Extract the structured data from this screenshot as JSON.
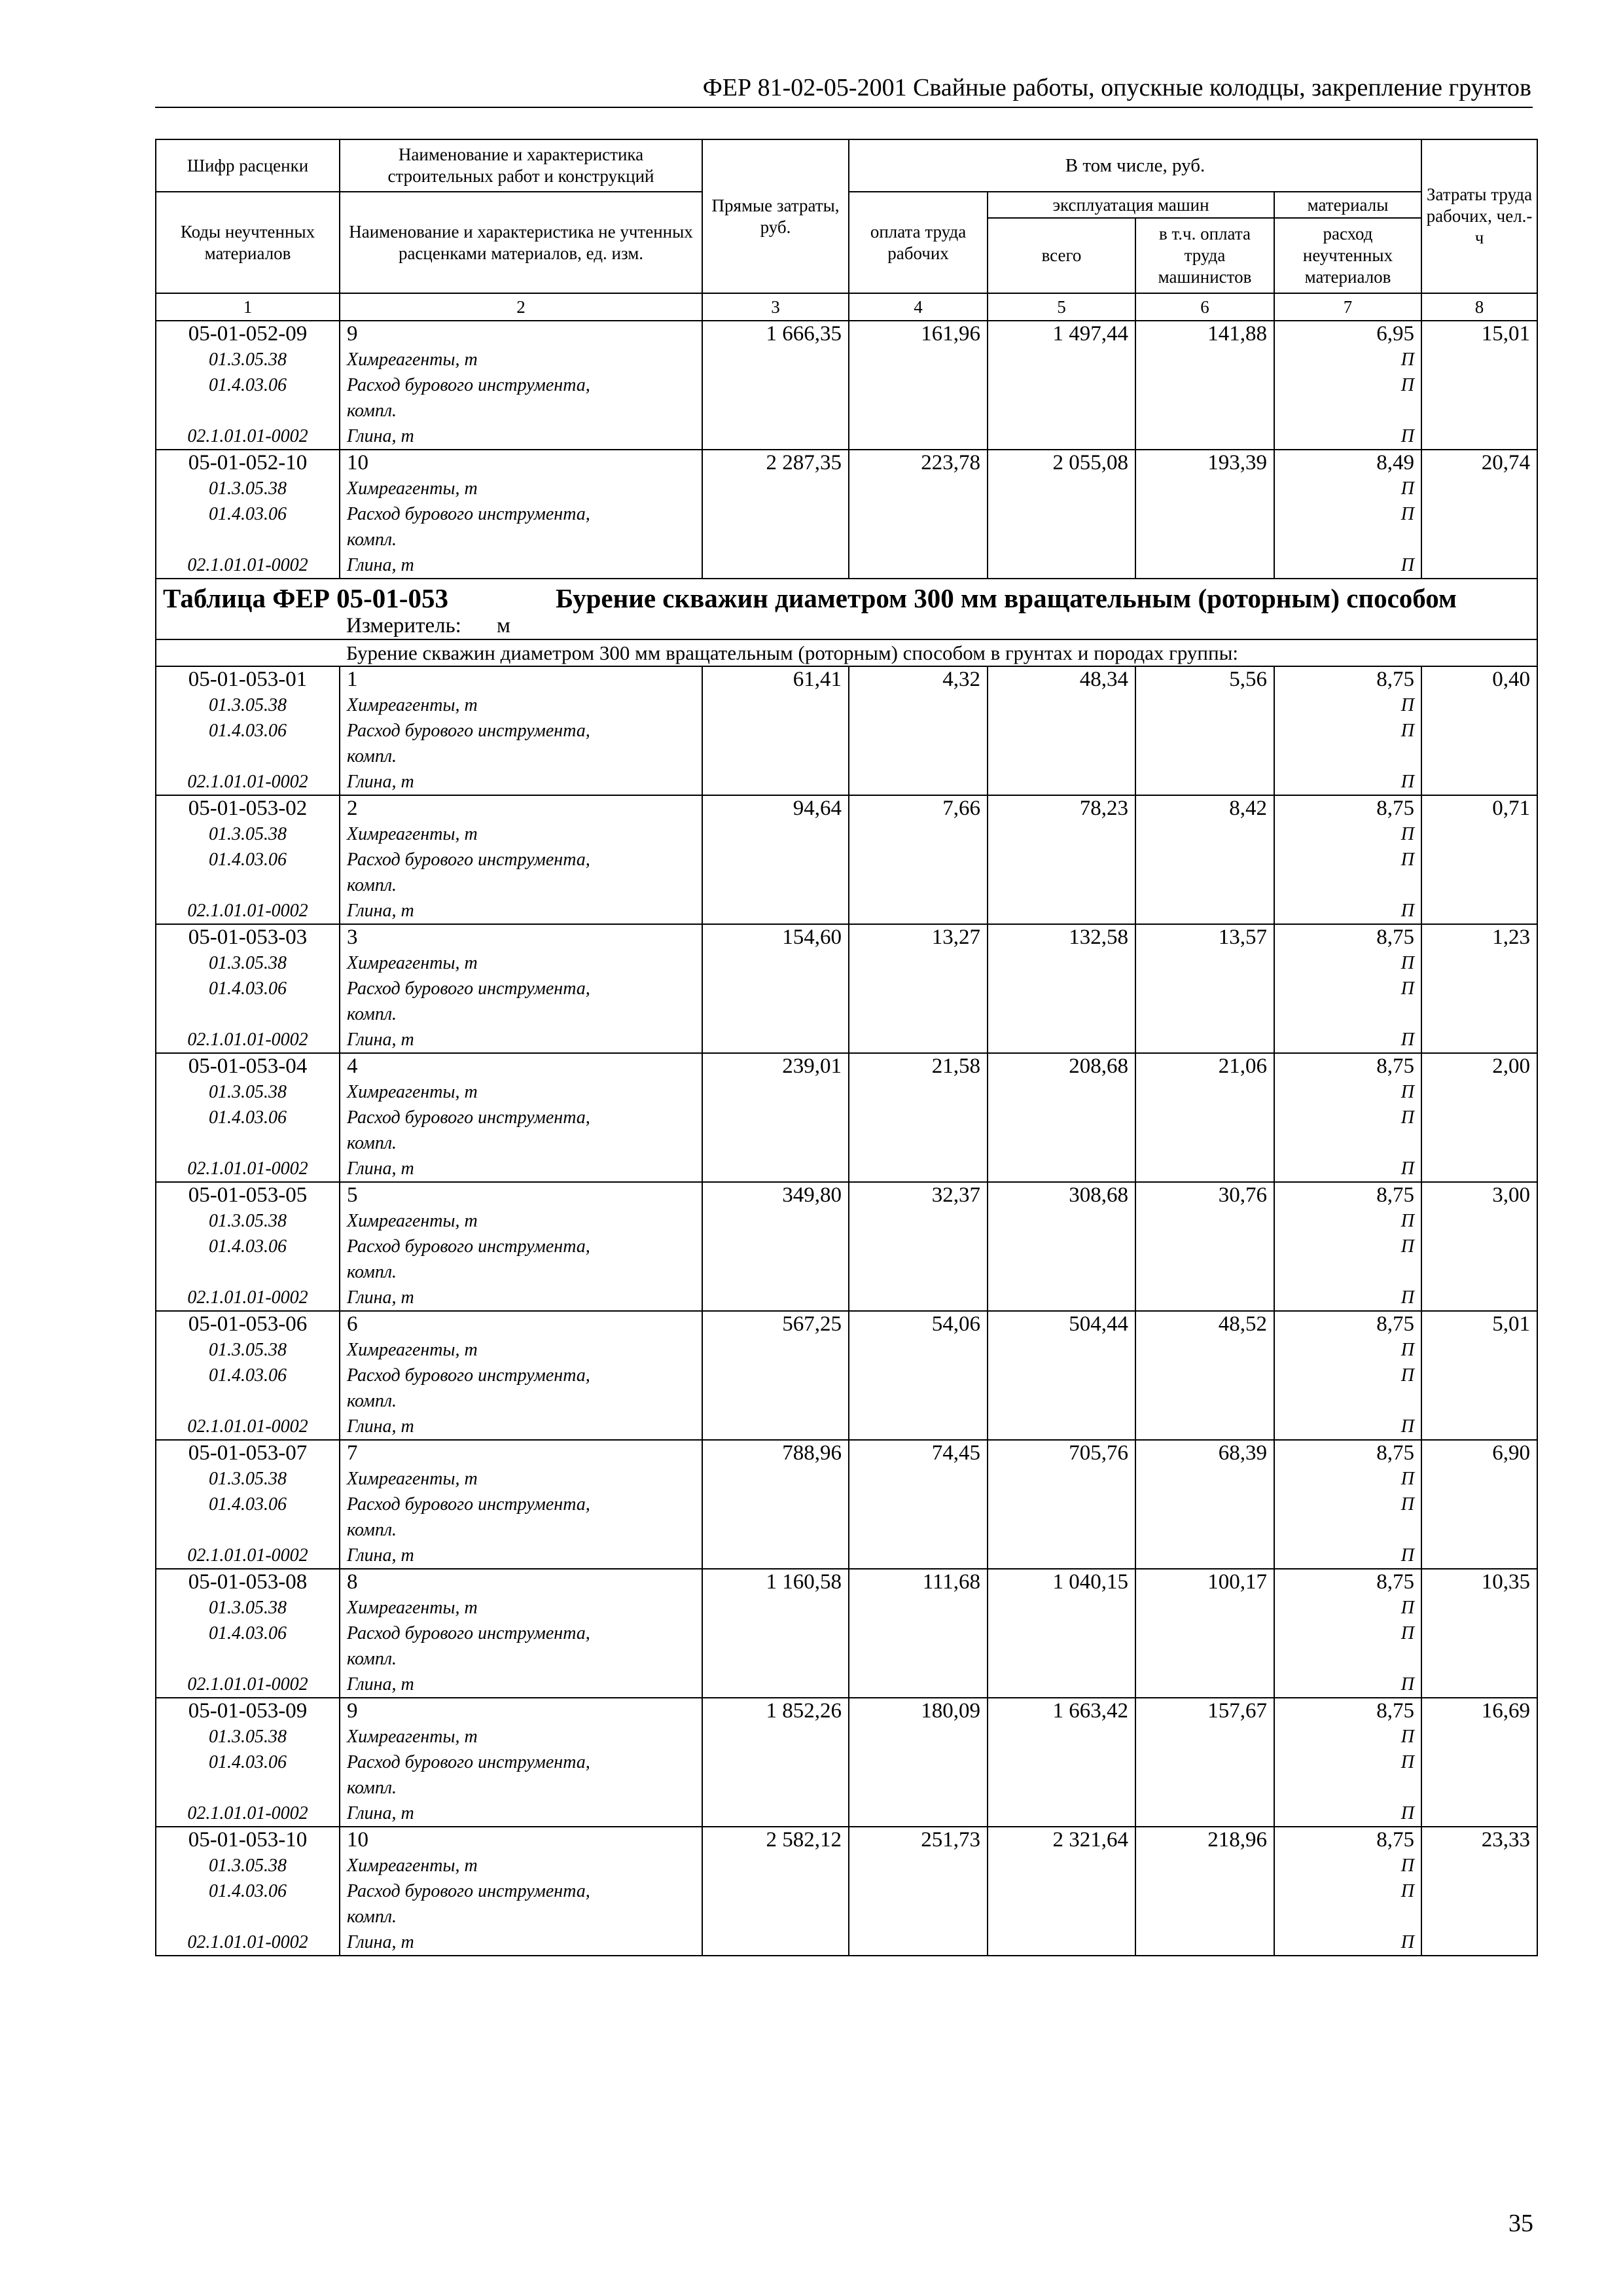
{
  "header": {
    "title": "ФЕР 81-02-05-2001 Свайные работы, опускные колодцы, закрепление грунтов"
  },
  "table": {
    "head": {
      "code": "Шифр расценки",
      "name": "Наименование и характеристика строительных работ и конструкций",
      "direct": "Прямые затраты, руб.",
      "incl": "В том числе, руб.",
      "labor_pay": "оплата труда рабочих",
      "machines": "эксплуатация машин",
      "machines_total": "всего",
      "machinists": "в т.ч. оплата труда машинистов",
      "materials": "материалы",
      "materials_sub": "расход неучтенных материалов",
      "labor": "Затраты труда рабочих, чел.-ч",
      "mat_codes": "Коды неучтенных материалов",
      "mat_names": "Наименование и характеристика не учтенных расценками материалов, ед. изм.",
      "col_numbers": [
        "1",
        "2",
        "3",
        "4",
        "5",
        "6",
        "7",
        "8"
      ]
    },
    "rows": [
      {
        "code": "05-01-052-09",
        "name": "9",
        "values": [
          "1 666,35",
          "161,96",
          "1 497,44",
          "141,88",
          "6,95",
          "15,01"
        ],
        "materials": [
          {
            "code": "01.3.05.38",
            "name": "Химреагенты, т",
            "mark": "П"
          },
          {
            "code": "01.4.03.06",
            "name": "Расход бурового инструмента, компл.",
            "mark": "П"
          },
          {
            "code": "02.1.01.01-0002",
            "name": "Глина, т",
            "mark": "П"
          }
        ]
      },
      {
        "code": "05-01-052-10",
        "name": "10",
        "values": [
          "2 287,35",
          "223,78",
          "2 055,08",
          "193,39",
          "8,49",
          "20,74"
        ],
        "materials": [
          {
            "code": "01.3.05.38",
            "name": "Химреагенты, т",
            "mark": "П"
          },
          {
            "code": "01.4.03.06",
            "name": "Расход бурового инструмента, компл.",
            "mark": "П"
          },
          {
            "code": "02.1.01.01-0002",
            "name": "Глина, т",
            "mark": "П"
          }
        ]
      }
    ]
  },
  "section": {
    "table_code": "Таблица ФЕР 05-01-053",
    "title": "Бурение скважин диаметром 300 мм вращательным (роторным) способом",
    "unit_label": "Измеритель:",
    "unit": "м",
    "subtitle": "Бурение скважин диаметром 300 мм вращательным (роторным) способом в грунтах и породах группы:",
    "rows": [
      {
        "code": "05-01-053-01",
        "name": "1",
        "values": [
          "61,41",
          "4,32",
          "48,34",
          "5,56",
          "8,75",
          "0,40"
        ],
        "materials": [
          {
            "code": "01.3.05.38",
            "name": "Химреагенты, т",
            "mark": "П"
          },
          {
            "code": "01.4.03.06",
            "name": "Расход бурового инструмента, компл.",
            "mark": "П"
          },
          {
            "code": "02.1.01.01-0002",
            "name": "Глина, т",
            "mark": "П"
          }
        ]
      },
      {
        "code": "05-01-053-02",
        "name": "2",
        "values": [
          "94,64",
          "7,66",
          "78,23",
          "8,42",
          "8,75",
          "0,71"
        ],
        "materials": [
          {
            "code": "01.3.05.38",
            "name": "Химреагенты, т",
            "mark": "П"
          },
          {
            "code": "01.4.03.06",
            "name": "Расход бурового инструмента, компл.",
            "mark": "П"
          },
          {
            "code": "02.1.01.01-0002",
            "name": "Глина, т",
            "mark": "П"
          }
        ]
      },
      {
        "code": "05-01-053-03",
        "name": "3",
        "values": [
          "154,60",
          "13,27",
          "132,58",
          "13,57",
          "8,75",
          "1,23"
        ],
        "materials": [
          {
            "code": "01.3.05.38",
            "name": "Химреагенты, т",
            "mark": "П"
          },
          {
            "code": "01.4.03.06",
            "name": "Расход бурового инструмента, компл.",
            "mark": "П"
          },
          {
            "code": "02.1.01.01-0002",
            "name": "Глина, т",
            "mark": "П"
          }
        ]
      },
      {
        "code": "05-01-053-04",
        "name": "4",
        "values": [
          "239,01",
          "21,58",
          "208,68",
          "21,06",
          "8,75",
          "2,00"
        ],
        "materials": [
          {
            "code": "01.3.05.38",
            "name": "Химреагенты, т",
            "mark": "П"
          },
          {
            "code": "01.4.03.06",
            "name": "Расход бурового инструмента, компл.",
            "mark": "П"
          },
          {
            "code": "02.1.01.01-0002",
            "name": "Глина, т",
            "mark": "П"
          }
        ]
      },
      {
        "code": "05-01-053-05",
        "name": "5",
        "values": [
          "349,80",
          "32,37",
          "308,68",
          "30,76",
          "8,75",
          "3,00"
        ],
        "materials": [
          {
            "code": "01.3.05.38",
            "name": "Химреагенты, т",
            "mark": "П"
          },
          {
            "code": "01.4.03.06",
            "name": "Расход бурового инструмента, компл.",
            "mark": "П"
          },
          {
            "code": "02.1.01.01-0002",
            "name": "Глина, т",
            "mark": "П"
          }
        ]
      },
      {
        "code": "05-01-053-06",
        "name": "6",
        "values": [
          "567,25",
          "54,06",
          "504,44",
          "48,52",
          "8,75",
          "5,01"
        ],
        "materials": [
          {
            "code": "01.3.05.38",
            "name": "Химреагенты, т",
            "mark": "П"
          },
          {
            "code": "01.4.03.06",
            "name": "Расход бурового инструмента, компл.",
            "mark": "П"
          },
          {
            "code": "02.1.01.01-0002",
            "name": "Глина, т",
            "mark": "П"
          }
        ]
      },
      {
        "code": "05-01-053-07",
        "name": "7",
        "values": [
          "788,96",
          "74,45",
          "705,76",
          "68,39",
          "8,75",
          "6,90"
        ],
        "materials": [
          {
            "code": "01.3.05.38",
            "name": "Химреагенты, т",
            "mark": "П"
          },
          {
            "code": "01.4.03.06",
            "name": "Расход бурового инструмента, компл.",
            "mark": "П"
          },
          {
            "code": "02.1.01.01-0002",
            "name": "Глина, т",
            "mark": "П"
          }
        ]
      },
      {
        "code": "05-01-053-08",
        "name": "8",
        "values": [
          "1 160,58",
          "111,68",
          "1 040,15",
          "100,17",
          "8,75",
          "10,35"
        ],
        "materials": [
          {
            "code": "01.3.05.38",
            "name": "Химреагенты, т",
            "mark": "П"
          },
          {
            "code": "01.4.03.06",
            "name": "Расход бурового инструмента, компл.",
            "mark": "П"
          },
          {
            "code": "02.1.01.01-0002",
            "name": "Глина, т",
            "mark": "П"
          }
        ]
      },
      {
        "code": "05-01-053-09",
        "name": "9",
        "values": [
          "1 852,26",
          "180,09",
          "1 663,42",
          "157,67",
          "8,75",
          "16,69"
        ],
        "materials": [
          {
            "code": "01.3.05.38",
            "name": "Химреагенты, т",
            "mark": "П"
          },
          {
            "code": "01.4.03.06",
            "name": "Расход бурового инструмента, компл.",
            "mark": "П"
          },
          {
            "code": "02.1.01.01-0002",
            "name": "Глина, т",
            "mark": "П"
          }
        ]
      },
      {
        "code": "05-01-053-10",
        "name": "10",
        "values": [
          "2 582,12",
          "251,73",
          "2 321,64",
          "218,96",
          "8,75",
          "23,33"
        ],
        "materials": [
          {
            "code": "01.3.05.38",
            "name": "Химреагенты, т",
            "mark": "П"
          },
          {
            "code": "01.4.03.06",
            "name": "Расход бурового инструмента, компл.",
            "mark": "П"
          },
          {
            "code": "02.1.01.01-0002",
            "name": "Глина, т",
            "mark": "П"
          }
        ]
      }
    ]
  },
  "footer": {
    "page_number": "35"
  }
}
